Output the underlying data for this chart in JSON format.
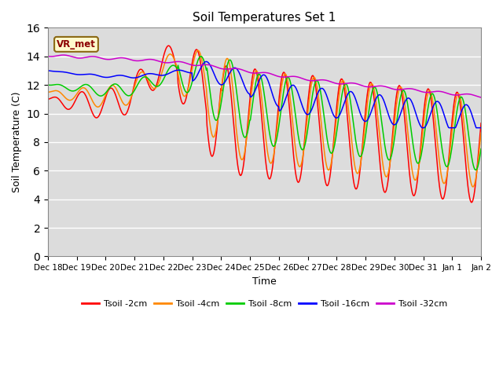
{
  "title": "Soil Temperatures Set 1",
  "xlabel": "Time",
  "ylabel": "Soil Temperature (C)",
  "ylim": [
    0,
    16
  ],
  "yticks": [
    0,
    2,
    4,
    6,
    8,
    10,
    12,
    14,
    16
  ],
  "bg_color": "#dcdcdc",
  "annotation_text": "VR_met",
  "series_colors": {
    "Tsoil -2cm": "#ff0000",
    "Tsoil -4cm": "#ff8800",
    "Tsoil -8cm": "#00cc00",
    "Tsoil -16cm": "#0000ff",
    "Tsoil -32cm": "#cc00cc"
  },
  "x_tick_labels": [
    "Dec 18",
    "Dec 19",
    "Dec 20",
    "Dec 21",
    "Dec 22",
    "Dec 23",
    "Dec 24",
    "Dec 25",
    "Dec 26",
    "Dec 27",
    "Dec 28",
    "Dec 29",
    "Dec 30",
    "Dec 31",
    "Jan 1",
    "Jan 2"
  ]
}
